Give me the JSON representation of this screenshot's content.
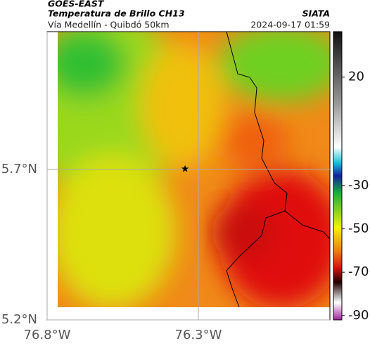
{
  "header": {
    "satellite": "GOES-EAST",
    "product": "Temperatura de Brillo CH13",
    "source": "SIATA",
    "region": "Vía Medellín - Quibdó 50km",
    "datetime": "2024-09-17 01:59"
  },
  "map": {
    "xlim": [
      -76.8,
      -75.865
    ],
    "ylim": [
      5.2,
      6.158
    ],
    "xticks": [
      {
        "value": -76.8,
        "label": "76.8°W"
      },
      {
        "value": -76.3,
        "label": "76.3°W"
      }
    ],
    "yticks": [
      {
        "value": 5.7,
        "label": "5.7°N"
      },
      {
        "value": 5.2,
        "label": "5.2°N"
      }
    ],
    "marker": {
      "lon": -76.344,
      "lat": 5.702
    }
  },
  "colorbar": {
    "lim": [
      -92,
      41
    ],
    "ticks": [
      20,
      -30,
      -50,
      -70,
      -90
    ]
  }
}
